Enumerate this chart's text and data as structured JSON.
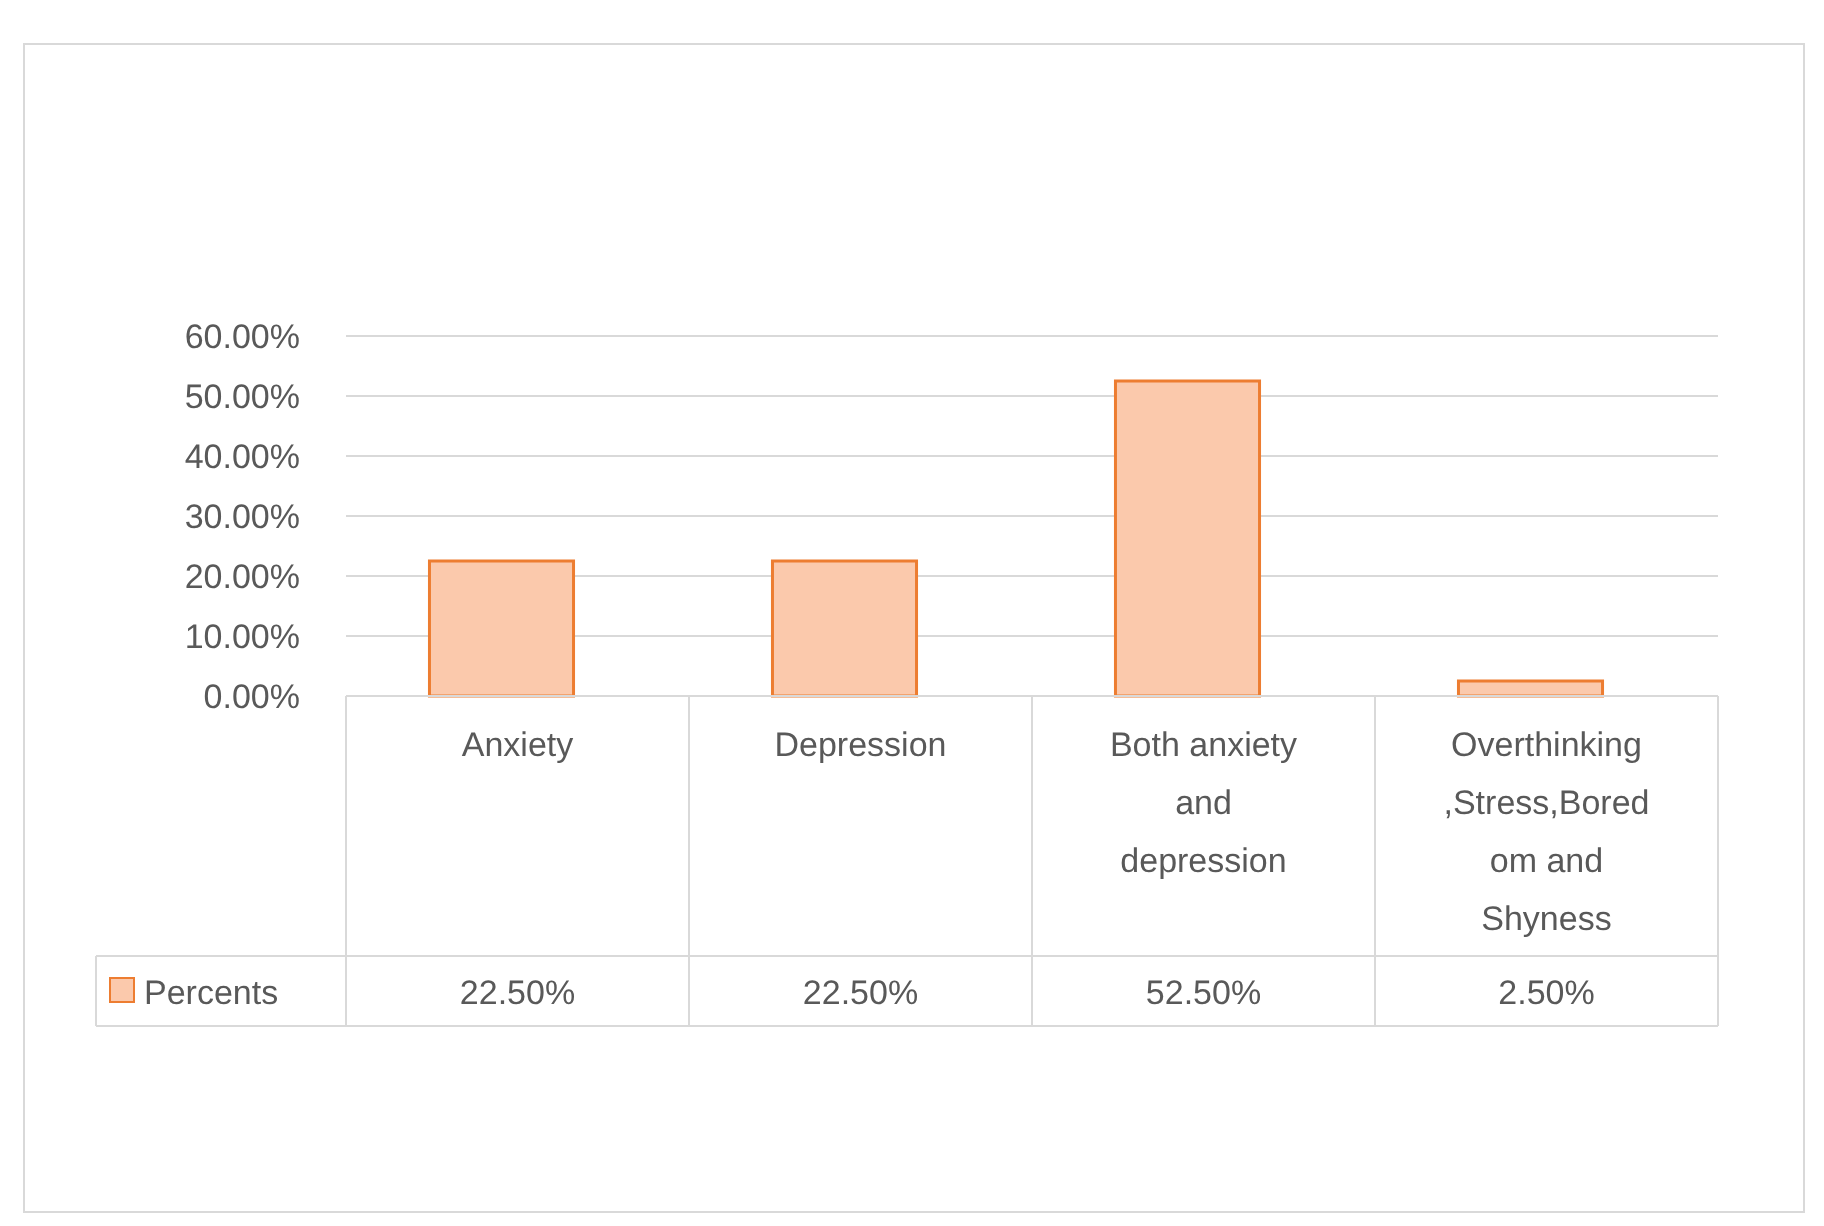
{
  "chart_data": {
    "type": "bar",
    "categories": [
      "Anxiety",
      "Depression",
      "Both anxiety and depression",
      "Overthinking ,Stress,Boredom and Shyness"
    ],
    "series": [
      {
        "name": "Percents",
        "color": "#fbc9ac",
        "values": [
          22.5,
          22.5,
          52.5,
          2.5
        ],
        "value_labels": [
          "22.50%",
          "22.50%",
          "52.50%",
          "2.50%"
        ]
      }
    ],
    "ylim": [
      0,
      60
    ],
    "yticks": [
      {
        "value": 0,
        "label": "0.00%"
      },
      {
        "value": 10,
        "label": "10.00%"
      },
      {
        "value": 20,
        "label": "20.00%"
      },
      {
        "value": 30,
        "label": "30.00%"
      },
      {
        "value": 40,
        "label": "40.00%"
      },
      {
        "value": 50,
        "label": "50.00%"
      },
      {
        "value": 60,
        "label": "60.00%"
      }
    ],
    "grid": "y",
    "legend": "bottom"
  }
}
